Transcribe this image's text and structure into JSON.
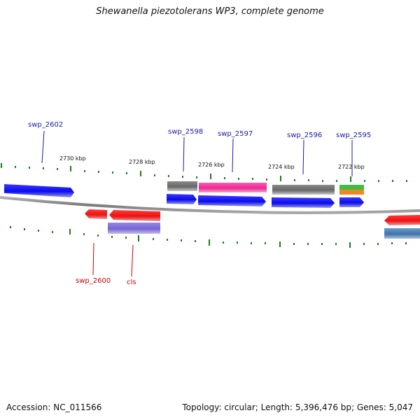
{
  "title": "Shewanella piezotolerans WP3, complete genome",
  "footer": {
    "accession": "Accession: NC_011566",
    "summary": "Topology: circular; Length: 5,396,476 bp; Genes: 5,047"
  },
  "scale": {
    "ticks": [
      "2730 kbp",
      "2728 kbp",
      "2726 kbp",
      "2724 kbp",
      "2722 kbp"
    ]
  },
  "gene_labels": {
    "top": [
      "swp_2602",
      "swp_2598",
      "swp_2597",
      "swp_2596",
      "swp_2595"
    ],
    "bottom": [
      "swp_2600",
      "cls"
    ]
  },
  "colors": {
    "forward_label": "#1a1aa6",
    "reverse_label": "#cc0000",
    "backbone": "#808080",
    "tick": "#1d7a1d",
    "blue": "#0a0af0",
    "red": "#ee1111",
    "gray": "#6a6a6a",
    "magenta": "#ee2a9a",
    "purple": "#7b6ad6",
    "green": "#44bb44",
    "orange": "#ee8822",
    "steelblue": "#4a7cae"
  }
}
